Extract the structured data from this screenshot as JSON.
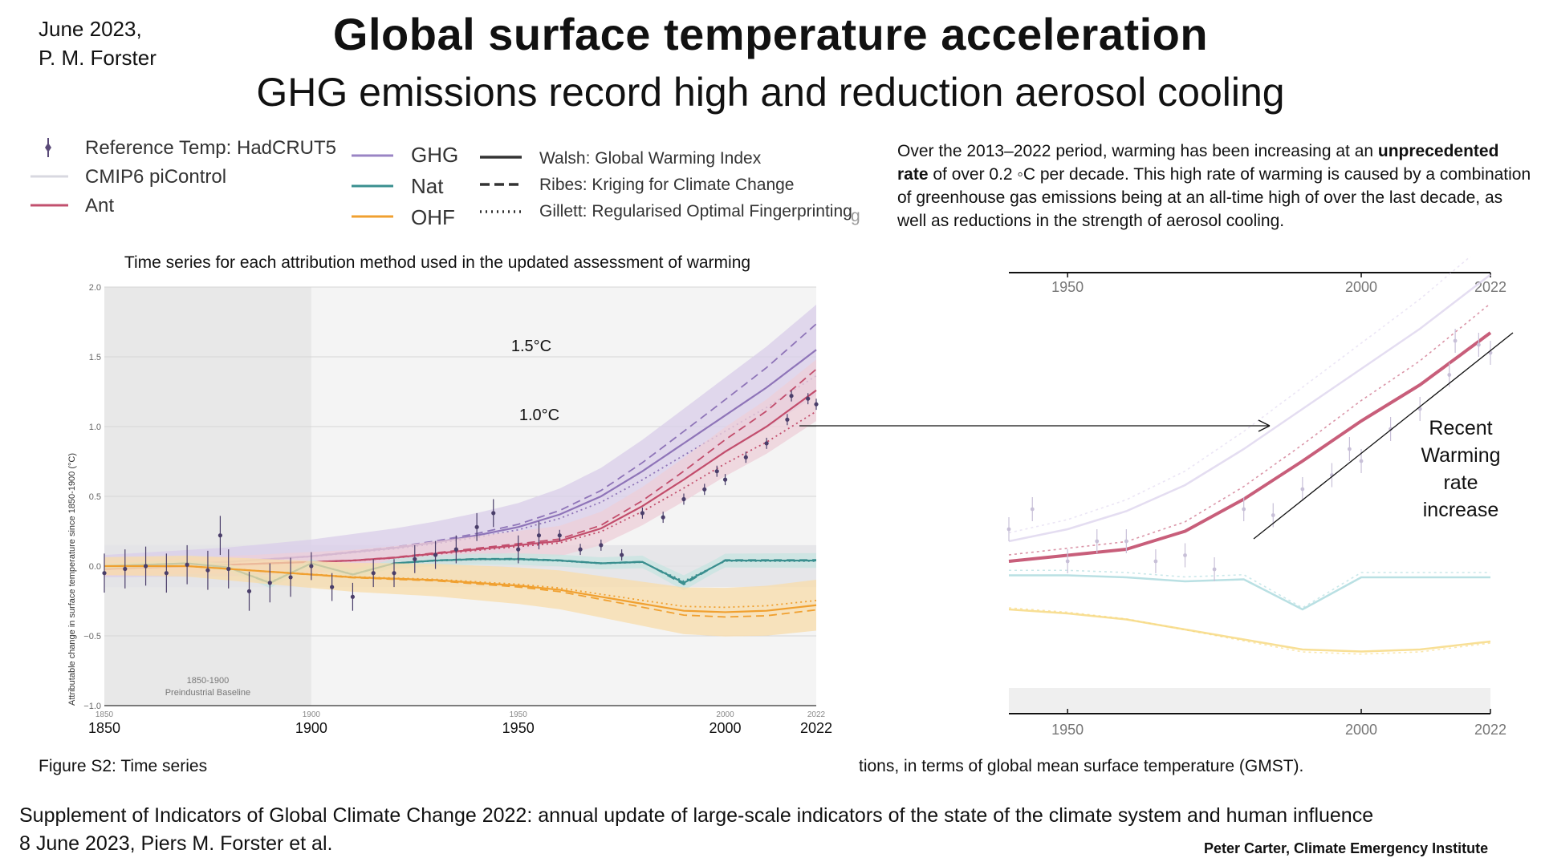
{
  "header": {
    "author_line1": "June 2023,",
    "author_line2": "P. M. Forster",
    "title": "Global surface temperature acceleration",
    "subtitle": "GHG emissions record high and reduction aerosol cooling"
  },
  "legend": {
    "items": [
      {
        "label": "Reference Temp: HadCRUT5",
        "color": "#5a4a78",
        "kind": "marker"
      },
      {
        "label": "CMIP6 piControl",
        "color": "#d8d8e0",
        "kind": "line"
      },
      {
        "label": "Ant",
        "color": "#c2506e",
        "kind": "line"
      },
      {
        "label": "GHG",
        "color": "#9a84c4",
        "kind": "line"
      },
      {
        "label": "Nat",
        "color": "#3a8f8f",
        "kind": "line"
      },
      {
        "label": "OHF",
        "color": "#f0a030",
        "kind": "line"
      },
      {
        "label": "Walsh: Global Warming Index",
        "color": "#333333",
        "kind": "solid"
      },
      {
        "label": "Ribes: Kriging for Climate Change",
        "color": "#333333",
        "kind": "dashed"
      },
      {
        "label": "Gillett: Regularised Optimal Fingerprinting",
        "color": "#333333",
        "kind": "dotted"
      }
    ],
    "stray_glyph": "g"
  },
  "description": {
    "part1": "Over the 2013–2022 period, warming has been increasing at an ",
    "bold1": "unprecedented rate",
    "part2": " of over 0.2 ◦C per decade. This high rate of warming is caused by a combination of greenhouse gas emissions being at an all-time high of over the last decade, as well as reductions in the strength of aerosol cooling."
  },
  "captions": {
    "left": "Figure S2: Time series",
    "right": "tions, in terms of global mean surface temperature (GMST)."
  },
  "footer": {
    "source_line1": "Supplement of Indicators of Global Climate Change 2022: annual update of large-scale indicators of the state of the climate system and human influence",
    "source_line2": "8 June 2023, Piers M. Forster et al.",
    "credit": "Peter Carter, Climate Emergency Institute"
  },
  "annotations": {
    "level_15": "1.5°C",
    "level_10": "1.0°C",
    "recent_warming": [
      "Recent",
      "Warming",
      "rate",
      "increase"
    ]
  },
  "colors": {
    "ghg": "#8e74b8",
    "ghg_band": "#d9cde9",
    "ant": "#c24d6c",
    "ant_band": "#eecfd8",
    "nat": "#3a8f8f",
    "nat_band": "#c7e4e0",
    "ohf": "#f0a030",
    "ohf_band": "#f8dcaa",
    "obs": "#4a3e6a",
    "baseline_shade": "#e8e8e8",
    "plot_bg": "#f4f4f4"
  },
  "chart_data": [
    {
      "type": "line",
      "title": "Time series for each attribution method used in the updated assessment of warming",
      "ylabel": "Attributable change in surface temperature since 1850-1900 (°C)",
      "xlim": [
        1850,
        2022
      ],
      "ylim": [
        -1.0,
        2.0
      ],
      "x_ticks_small": [
        "1850",
        "1900",
        "1950",
        "2000",
        "2022"
      ],
      "x_ticks_large": [
        "1850",
        "1900",
        "1950",
        "2000",
        "2022"
      ],
      "y_ticks": [
        "2.0",
        "1.5",
        "1.0",
        "0.5",
        "0.0",
        "−0.5",
        "−1.0"
      ],
      "y_tick_values": [
        2.0,
        1.5,
        1.0,
        0.5,
        0.0,
        -0.5,
        -1.0
      ],
      "baseline_region": {
        "x_start": 1850,
        "x_end": 1900,
        "label_line1": "1850-1900",
        "label_line2": "Preindustrial Baseline"
      },
      "grid": true,
      "x": [
        1850,
        1860,
        1870,
        1880,
        1890,
        1900,
        1910,
        1920,
        1930,
        1940,
        1950,
        1960,
        1970,
        1980,
        1990,
        2000,
        2010,
        2022
      ],
      "series": [
        {
          "name": "GHG",
          "values": [
            0.0,
            0.01,
            0.02,
            0.03,
            0.05,
            0.07,
            0.1,
            0.13,
            0.17,
            0.22,
            0.28,
            0.37,
            0.5,
            0.68,
            0.88,
            1.08,
            1.28,
            1.55
          ]
        },
        {
          "name": "Ant",
          "values": [
            -0.02,
            -0.01,
            0.0,
            0.01,
            0.02,
            0.03,
            0.04,
            0.06,
            0.09,
            0.12,
            0.15,
            0.18,
            0.27,
            0.43,
            0.62,
            0.82,
            1.0,
            1.26
          ]
        },
        {
          "name": "Nat",
          "values": [
            0.0,
            0.01,
            0.02,
            -0.01,
            -0.12,
            0.02,
            -0.06,
            0.02,
            0.04,
            0.05,
            0.05,
            0.04,
            0.02,
            0.03,
            -0.12,
            0.04,
            0.04,
            0.04
          ]
        },
        {
          "name": "OHF",
          "values": [
            0.0,
            0.0,
            0.0,
            -0.02,
            -0.04,
            -0.06,
            -0.08,
            -0.09,
            -0.1,
            -0.12,
            -0.14,
            -0.17,
            -0.22,
            -0.27,
            -0.32,
            -0.33,
            -0.32,
            -0.28
          ]
        }
      ],
      "observations": {
        "name": "Reference Temp: HadCRUT5",
        "x": [
          1850,
          1855,
          1860,
          1865,
          1870,
          1875,
          1878,
          1880,
          1885,
          1890,
          1895,
          1900,
          1905,
          1910,
          1915,
          1920,
          1925,
          1930,
          1935,
          1940,
          1944,
          1950,
          1955,
          1960,
          1965,
          1970,
          1975,
          1980,
          1985,
          1990,
          1995,
          1998,
          2000,
          2005,
          2010,
          2015,
          2016,
          2020,
          2022
        ],
        "values": [
          -0.05,
          -0.02,
          0.0,
          -0.05,
          0.01,
          -0.03,
          0.22,
          -0.02,
          -0.18,
          -0.12,
          -0.08,
          0.0,
          -0.15,
          -0.22,
          -0.05,
          -0.05,
          0.05,
          0.08,
          0.12,
          0.28,
          0.38,
          0.12,
          0.22,
          0.22,
          0.12,
          0.15,
          0.08,
          0.38,
          0.35,
          0.48,
          0.55,
          0.68,
          0.62,
          0.78,
          0.88,
          1.05,
          1.22,
          1.2,
          1.16
        ]
      }
    },
    {
      "type": "line",
      "xlim": [
        1940,
        2022
      ],
      "x_ticks_top": [
        "1950",
        "2000",
        "2022"
      ],
      "x_ticks_bottom": [
        "1950",
        "2000",
        "2022"
      ]
    }
  ]
}
